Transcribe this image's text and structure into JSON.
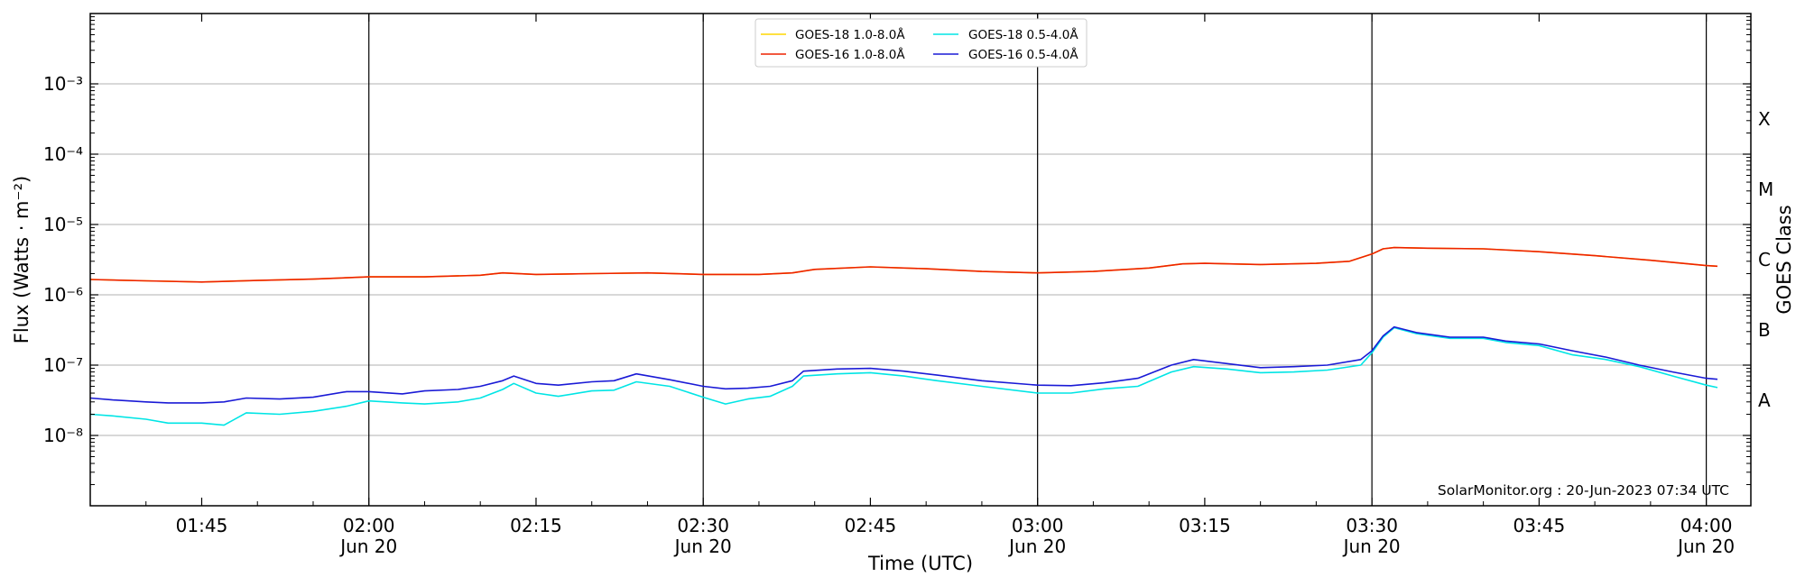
{
  "chart_data": {
    "type": "line",
    "xlabel": "Time (UTC)",
    "ylabel": "Flux (Watts · m⁻²)",
    "y2label": "GOES Class",
    "yscale": "log",
    "xlim": [
      "01:35",
      "04:04"
    ],
    "ylim": [
      1e-09,
      0.01
    ],
    "grid": "horizontal",
    "credit": "SolarMonitor.org : 20-Jun-2023 07:34 UTC",
    "legend": "top-center",
    "x_ticks": [
      {
        "t": "01:45",
        "label": "01:45",
        "date": ""
      },
      {
        "t": "02:00",
        "label": "02:00",
        "date": "Jun 20"
      },
      {
        "t": "02:15",
        "label": "02:15",
        "date": ""
      },
      {
        "t": "02:30",
        "label": "02:30",
        "date": "Jun 20"
      },
      {
        "t": "02:45",
        "label": "02:45",
        "date": ""
      },
      {
        "t": "03:00",
        "label": "03:00",
        "date": "Jun 20"
      },
      {
        "t": "03:15",
        "label": "03:15",
        "date": ""
      },
      {
        "t": "03:30",
        "label": "03:30",
        "date": "Jun 20"
      },
      {
        "t": "03:45",
        "label": "03:45",
        "date": ""
      },
      {
        "t": "04:00",
        "label": "04:00",
        "date": "Jun 20"
      }
    ],
    "day_lines": [
      "02:00",
      "02:30",
      "03:00",
      "03:30",
      "04:00"
    ],
    "y_ticks": [
      {
        "exp": -8,
        "label": "10⁻⁸"
      },
      {
        "exp": -7,
        "label": "10⁻⁷"
      },
      {
        "exp": -6,
        "label": "10⁻⁶"
      },
      {
        "exp": -5,
        "label": "10⁻⁵"
      },
      {
        "exp": -4,
        "label": "10⁻⁴"
      },
      {
        "exp": -3,
        "label": "10⁻³"
      }
    ],
    "goes_classes": [
      {
        "label": "A",
        "exp": -7.5
      },
      {
        "label": "B",
        "exp": -6.5
      },
      {
        "label": "C",
        "exp": -5.5
      },
      {
        "label": "M",
        "exp": -4.5
      },
      {
        "label": "X",
        "exp": -3.5
      }
    ],
    "series": [
      {
        "name": "GOES-18 1.0-8.0Å",
        "color": "#ffd700",
        "x": [
          "01:35",
          "01:40",
          "01:45",
          "01:50",
          "01:55",
          "02:00",
          "02:05",
          "02:10",
          "02:12",
          "02:15",
          "02:20",
          "02:25",
          "02:30",
          "02:35",
          "02:38",
          "02:40",
          "02:45",
          "02:50",
          "02:55",
          "03:00",
          "03:05",
          "03:10",
          "03:13",
          "03:15",
          "03:20",
          "03:25",
          "03:28",
          "03:30",
          "03:31",
          "03:32",
          "03:35",
          "03:40",
          "03:45",
          "03:50",
          "03:55",
          "04:00",
          "04:01"
        ],
        "values": [
          1.65e-06,
          1.58e-06,
          1.52e-06,
          1.6e-06,
          1.67e-06,
          1.8e-06,
          1.8e-06,
          1.9e-06,
          2.05e-06,
          1.95e-06,
          2e-06,
          2.05e-06,
          1.95e-06,
          1.95e-06,
          2.05e-06,
          2.3e-06,
          2.5e-06,
          2.35e-06,
          2.15e-06,
          2.05e-06,
          2.15e-06,
          2.4e-06,
          2.75e-06,
          2.8e-06,
          2.7e-06,
          2.8e-06,
          3e-06,
          3.8e-06,
          4.5e-06,
          4.7e-06,
          4.6e-06,
          4.5e-06,
          4.1e-06,
          3.6e-06,
          3.1e-06,
          2.6e-06,
          2.55e-06
        ]
      },
      {
        "name": "GOES-16 1.0-8.0Å",
        "color": "#ee2200",
        "x": [
          "01:35",
          "01:40",
          "01:45",
          "01:50",
          "01:55",
          "02:00",
          "02:05",
          "02:10",
          "02:12",
          "02:15",
          "02:20",
          "02:25",
          "02:30",
          "02:35",
          "02:38",
          "02:40",
          "02:45",
          "02:50",
          "02:55",
          "03:00",
          "03:05",
          "03:10",
          "03:13",
          "03:15",
          "03:20",
          "03:25",
          "03:28",
          "03:30",
          "03:31",
          "03:32",
          "03:35",
          "03:40",
          "03:45",
          "03:50",
          "03:55",
          "04:00",
          "04:01"
        ],
        "values": [
          1.65e-06,
          1.58e-06,
          1.52e-06,
          1.6e-06,
          1.67e-06,
          1.8e-06,
          1.8e-06,
          1.9e-06,
          2.05e-06,
          1.95e-06,
          2e-06,
          2.05e-06,
          1.95e-06,
          1.95e-06,
          2.05e-06,
          2.3e-06,
          2.5e-06,
          2.35e-06,
          2.15e-06,
          2.05e-06,
          2.15e-06,
          2.4e-06,
          2.75e-06,
          2.8e-06,
          2.7e-06,
          2.8e-06,
          3e-06,
          3.8e-06,
          4.5e-06,
          4.7e-06,
          4.6e-06,
          4.5e-06,
          4.1e-06,
          3.6e-06,
          3.1e-06,
          2.6e-06,
          2.55e-06
        ]
      },
      {
        "name": "GOES-18 0.5-4.0Å",
        "color": "#00e5e5",
        "x": [
          "01:35",
          "01:37",
          "01:40",
          "01:42",
          "01:45",
          "01:47",
          "01:49",
          "01:52",
          "01:55",
          "01:58",
          "02:00",
          "02:03",
          "02:05",
          "02:08",
          "02:10",
          "02:12",
          "02:13",
          "02:15",
          "02:17",
          "02:20",
          "02:22",
          "02:24",
          "02:27",
          "02:30",
          "02:32",
          "02:34",
          "02:36",
          "02:38",
          "02:39",
          "02:42",
          "02:45",
          "02:48",
          "02:51",
          "02:55",
          "03:00",
          "03:03",
          "03:06",
          "03:09",
          "03:12",
          "03:14",
          "03:17",
          "03:20",
          "03:23",
          "03:26",
          "03:29",
          "03:30",
          "03:31",
          "03:32",
          "03:34",
          "03:37",
          "03:40",
          "03:42",
          "03:45",
          "03:48",
          "03:51",
          "03:54",
          "03:57",
          "04:00",
          "04:01"
        ],
        "values": [
          2e-08,
          1.9e-08,
          1.7e-08,
          1.5e-08,
          1.5e-08,
          1.4e-08,
          2.1e-08,
          2e-08,
          2.2e-08,
          2.6e-08,
          3.1e-08,
          2.9e-08,
          2.8e-08,
          3e-08,
          3.4e-08,
          4.5e-08,
          5.5e-08,
          4e-08,
          3.6e-08,
          4.3e-08,
          4.4e-08,
          5.8e-08,
          5e-08,
          3.5e-08,
          2.8e-08,
          3.3e-08,
          3.6e-08,
          5e-08,
          7e-08,
          7.5e-08,
          7.8e-08,
          7e-08,
          6e-08,
          5e-08,
          4e-08,
          4e-08,
          4.6e-08,
          5e-08,
          8e-08,
          9.5e-08,
          8.8e-08,
          7.8e-08,
          8e-08,
          8.5e-08,
          1e-07,
          1.5e-07,
          2.5e-07,
          3.4e-07,
          2.8e-07,
          2.4e-07,
          2.4e-07,
          2.1e-07,
          1.9e-07,
          1.4e-07,
          1.2e-07,
          9.5e-08,
          7e-08,
          5.2e-08,
          4.8e-08
        ]
      },
      {
        "name": "GOES-16 0.5-4.0Å",
        "color": "#1a1ad6",
        "x": [
          "01:35",
          "01:37",
          "01:40",
          "01:42",
          "01:45",
          "01:47",
          "01:49",
          "01:52",
          "01:55",
          "01:58",
          "02:00",
          "02:03",
          "02:05",
          "02:08",
          "02:10",
          "02:12",
          "02:13",
          "02:15",
          "02:17",
          "02:20",
          "02:22",
          "02:24",
          "02:27",
          "02:30",
          "02:32",
          "02:34",
          "02:36",
          "02:38",
          "02:39",
          "02:42",
          "02:45",
          "02:48",
          "02:51",
          "02:55",
          "03:00",
          "03:03",
          "03:06",
          "03:09",
          "03:12",
          "03:14",
          "03:17",
          "03:20",
          "03:23",
          "03:26",
          "03:29",
          "03:30",
          "03:31",
          "03:32",
          "03:34",
          "03:37",
          "03:40",
          "03:42",
          "03:45",
          "03:48",
          "03:51",
          "03:54",
          "03:57",
          "04:00",
          "04:01"
        ],
        "values": [
          3.4e-08,
          3.2e-08,
          3e-08,
          2.9e-08,
          2.9e-08,
          3e-08,
          3.4e-08,
          3.3e-08,
          3.5e-08,
          4.2e-08,
          4.2e-08,
          3.9e-08,
          4.3e-08,
          4.5e-08,
          5e-08,
          6e-08,
          7e-08,
          5.5e-08,
          5.2e-08,
          5.8e-08,
          6e-08,
          7.5e-08,
          6.2e-08,
          5e-08,
          4.6e-08,
          4.7e-08,
          5e-08,
          6e-08,
          8.2e-08,
          8.8e-08,
          9e-08,
          8.2e-08,
          7.2e-08,
          6e-08,
          5.2e-08,
          5.1e-08,
          5.6e-08,
          6.5e-08,
          1e-07,
          1.2e-07,
          1.05e-07,
          9.2e-08,
          9.5e-08,
          1e-07,
          1.2e-07,
          1.6e-07,
          2.6e-07,
          3.5e-07,
          2.9e-07,
          2.5e-07,
          2.5e-07,
          2.2e-07,
          2e-07,
          1.6e-07,
          1.3e-07,
          1e-07,
          8e-08,
          6.5e-08,
          6.3e-08
        ]
      }
    ]
  }
}
